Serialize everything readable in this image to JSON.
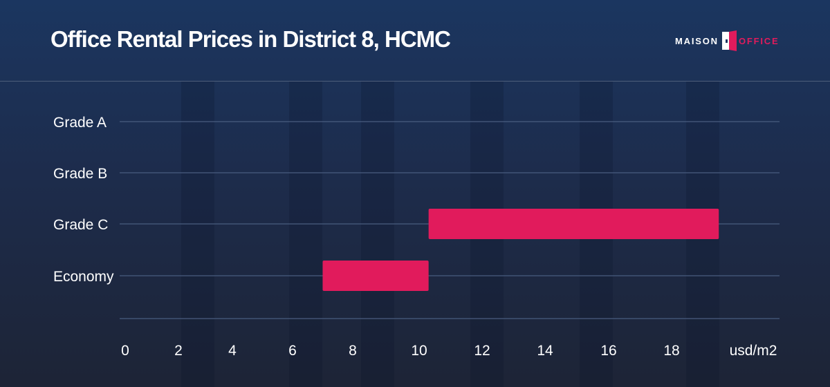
{
  "header": {
    "title": "Office Rental Prices in District 8, HCMC",
    "logo_left": "MAISON",
    "logo_right": "OFFICE"
  },
  "colors": {
    "bar": "#e11b5c",
    "gridline": "#4a5d80",
    "background_top": "#1b3660",
    "background_bottom": "#1d2436",
    "brand_pink": "#e11b5c"
  },
  "chart_data": {
    "type": "bar",
    "orientation": "horizontal-range",
    "title": "Office Rental Prices in District 8, HCMC",
    "xlabel": "usd/m2",
    "ylabel": "",
    "categories": [
      "Grade A",
      "Grade B",
      "Grade C",
      "Economy"
    ],
    "ranges": [
      null,
      null,
      [
        10.3,
        19.5
      ],
      [
        7,
        10.3
      ]
    ],
    "xticks": [
      0,
      2,
      4,
      6,
      8,
      10,
      12,
      14,
      16,
      18
    ],
    "xlim": [
      0,
      20
    ],
    "grid": true,
    "legend": "none"
  }
}
